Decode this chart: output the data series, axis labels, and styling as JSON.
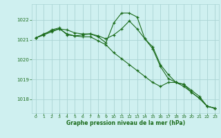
{
  "title": "Graphe pression niveau de la mer (hPa)",
  "background_color": "#cff0f0",
  "grid_color": "#aad4d4",
  "line_color": "#1a6b1a",
  "xlim": [
    -0.5,
    23.5
  ],
  "ylim": [
    1017.3,
    1022.8
  ],
  "yticks": [
    1018,
    1019,
    1020,
    1021,
    1022
  ],
  "xticks": [
    0,
    1,
    2,
    3,
    4,
    5,
    6,
    7,
    8,
    9,
    10,
    11,
    12,
    13,
    14,
    15,
    16,
    17,
    18,
    19,
    20,
    21,
    22,
    23
  ],
  "series1": [
    1021.1,
    1021.3,
    1021.45,
    1021.55,
    1021.5,
    1021.35,
    1021.3,
    1021.3,
    1021.15,
    1020.85,
    1021.85,
    1022.35,
    1022.35,
    1022.15,
    1021.05,
    1020.55,
    1019.65,
    1019.05,
    1018.85,
    1018.65,
    1018.35,
    1018.05,
    1017.65,
    1017.55
  ],
  "series2": [
    1021.1,
    1021.25,
    1021.4,
    1021.55,
    1021.3,
    1021.2,
    1021.15,
    1021.15,
    1020.95,
    1020.75,
    1020.35,
    1020.05,
    1019.75,
    1019.45,
    1019.15,
    1018.85,
    1018.65,
    1018.85,
    1018.85,
    1018.75,
    1018.45,
    1018.15,
    1017.65,
    1017.55
  ],
  "series3": [
    1021.1,
    1021.25,
    1021.5,
    1021.6,
    1021.25,
    1021.2,
    1021.25,
    1021.3,
    1021.2,
    1021.05,
    1021.25,
    1021.55,
    1021.95,
    1021.55,
    1021.05,
    1020.65,
    1019.75,
    1019.25,
    1018.85,
    1018.75,
    1018.35,
    1018.05,
    1017.65,
    1017.55
  ]
}
